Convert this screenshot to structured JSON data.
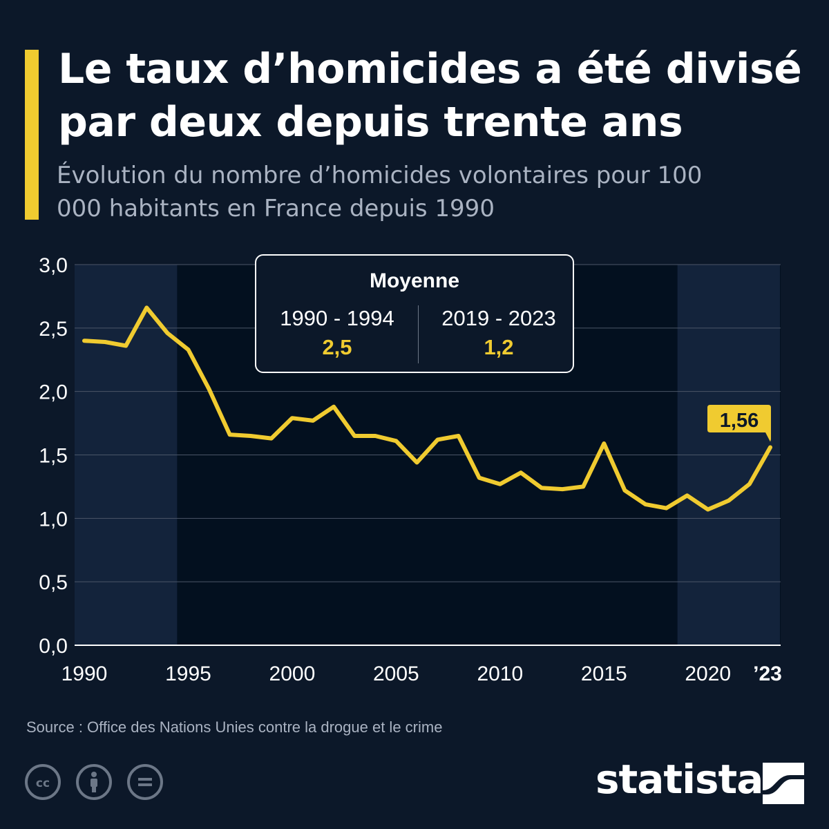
{
  "header": {
    "title": "Le taux d’homicides a été divisé par deux depuis trente ans",
    "subtitle": "Évolution du nombre d’homicides volontaires pour 100 000 habitants en France depuis 1990",
    "accent_color": "#f0cb30"
  },
  "legend": {
    "title": "Moyenne",
    "left_period": "1990 - 1994",
    "left_value": "2,5",
    "right_period": "2019 - 2023",
    "right_value": "1,2"
  },
  "chart_data": {
    "type": "line",
    "x": [
      1990,
      1991,
      1992,
      1993,
      1994,
      1995,
      1996,
      1997,
      1998,
      1999,
      2000,
      2001,
      2002,
      2003,
      2004,
      2005,
      2006,
      2007,
      2008,
      2009,
      2010,
      2011,
      2012,
      2013,
      2014,
      2015,
      2016,
      2017,
      2018,
      2019,
      2020,
      2021,
      2022,
      2023
    ],
    "series": [
      {
        "values": [
          2.4,
          2.39,
          2.36,
          2.66,
          2.46,
          2.33,
          2.02,
          1.66,
          1.65,
          1.63,
          1.79,
          1.77,
          1.88,
          1.65,
          1.65,
          1.61,
          1.44,
          1.62,
          1.65,
          1.32,
          1.27,
          1.36,
          1.24,
          1.23,
          1.25,
          1.59,
          1.22,
          1.11,
          1.08,
          1.18,
          1.07,
          1.14,
          1.27,
          1.56
        ],
        "color": "#f0cb30"
      }
    ],
    "ylim": [
      0,
      3
    ],
    "y_ticks": [
      "0,0",
      "0,5",
      "1,0",
      "1,5",
      "2,0",
      "2,5",
      "3,0"
    ],
    "x_tick_labels": [
      {
        "year": 1990,
        "label": "1990",
        "bold": false
      },
      {
        "year": 1995,
        "label": "1995",
        "bold": false
      },
      {
        "year": 2000,
        "label": "2000",
        "bold": false
      },
      {
        "year": 2005,
        "label": "2005",
        "bold": false
      },
      {
        "year": 2010,
        "label": "2010",
        "bold": false
      },
      {
        "year": 2015,
        "label": "2015",
        "bold": false
      },
      {
        "year": 2020,
        "label": "2020",
        "bold": false
      },
      {
        "year": 2023,
        "label": "’23",
        "bold": true
      }
    ],
    "shaded_periods": [
      [
        1990,
        1994
      ],
      [
        2019,
        2023
      ]
    ],
    "end_label": "1,56",
    "grid": true
  },
  "footer": {
    "source": "Source : Office des Nations Unies contre la drogue et le crime",
    "brand": "statista",
    "license_icons": [
      "creative-commons-icon",
      "attribution-icon",
      "no-derivatives-icon"
    ]
  }
}
